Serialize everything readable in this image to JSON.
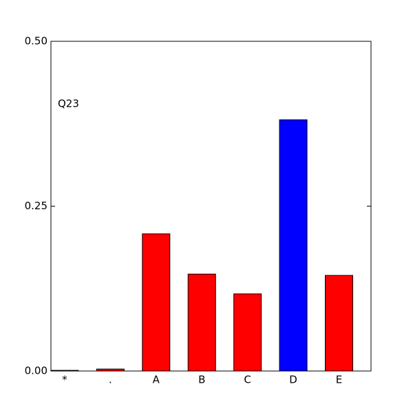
{
  "chart_data": {
    "type": "bar",
    "annotation": "Q23",
    "categories": [
      "*",
      ".",
      "A",
      "B",
      "C",
      "D",
      "E"
    ],
    "values": [
      0.001,
      0.003,
      0.208,
      0.147,
      0.117,
      0.381,
      0.145
    ],
    "colors": [
      "#ff0000",
      "#ff0000",
      "#ff0000",
      "#ff0000",
      "#ff0000",
      "#0000ff",
      "#ff0000"
    ],
    "ylim": [
      0,
      0.5
    ],
    "yticks": [
      {
        "value": 0,
        "label": "0.00"
      },
      {
        "value": 0.25,
        "label": "0.25"
      },
      {
        "value": 0.5,
        "label": "0.50"
      }
    ],
    "grid": false
  }
}
